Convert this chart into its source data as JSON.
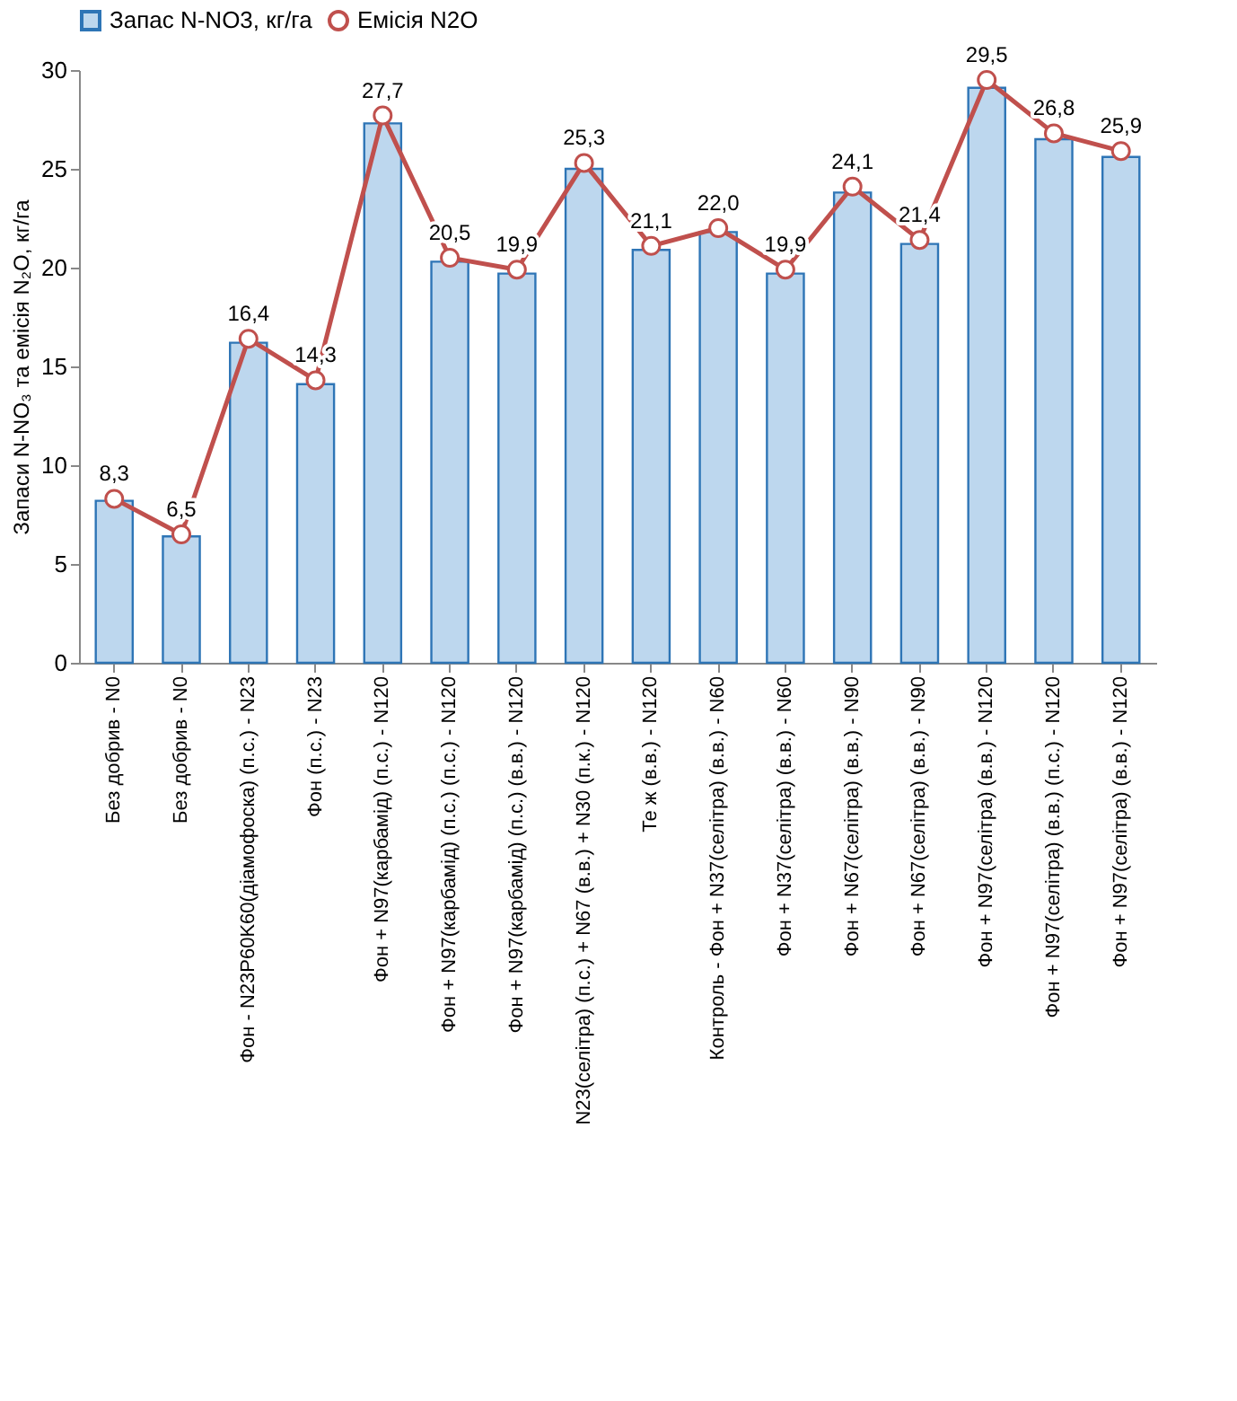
{
  "chart_data": {
    "type": "bar",
    "ylabel": "Запаси N-NO₃ та емісія N₂O, кг/га",
    "categories": [
      "Без добрив - N0",
      "Без добрив - N0",
      "Фон - N23P60K60(діамофоска) (п.с.) - N23",
      "Фон (п.с.) - N23",
      "Фон + N97(карбамід) (п.с.) - N120",
      "Фон + N97(карбамід) (п.с.) (п.с.) - N120",
      "Фон + N97(карбамід) (п.с.) (в.в.) - N120",
      "N23(селітра) (п.с.) + N67 (в.в.) + N30  (п.к.) - N120",
      "Те ж (в.в.) - N120",
      "Контроль - Фон + N37(селітра) (в.в.) - N60",
      "Фон + N37(селітра) (в.в.) - N60",
      "Фон + N67(селітра) (в.в.) - N90",
      "Фон + N67(селітра) (в.в.) - N90",
      "Фон + N97(селітра) (в.в.) - N120",
      "Фон + N97(селітра) (в.в.) (п.с.) - N120",
      "Фон + N97(селітра) (в.в.) - N120"
    ],
    "series": [
      {
        "name": "Запас N-NO3, кг/га",
        "color": "#bdd7ee",
        "values": [
          8.2,
          6.4,
          16.2,
          14.1,
          27.3,
          20.3,
          19.7,
          25.0,
          20.9,
          21.8,
          19.7,
          23.8,
          21.2,
          29.1,
          26.5,
          25.6
        ]
      },
      {
        "name": "Емісія N2O",
        "type": "line",
        "color": "#c0504d",
        "marker": "circle",
        "values": [
          8.3,
          6.5,
          16.4,
          14.3,
          27.7,
          20.5,
          19.9,
          25.3,
          21.1,
          22.0,
          19.9,
          24.1,
          21.4,
          29.5,
          26.8,
          25.9
        ],
        "value_labels": [
          "8,3",
          "6,5",
          "16,4",
          "14,3",
          "27,7",
          "20,5",
          "19,9",
          "25,3",
          "21,1",
          "22,0",
          "19,9",
          "24,1",
          "21,4",
          "29,5",
          "26,8",
          "25,9"
        ]
      }
    ],
    "ylim": [
      0,
      30
    ],
    "yticks": [
      0,
      5,
      10,
      15,
      20,
      25,
      30
    ],
    "grid": false,
    "legend": "top"
  }
}
